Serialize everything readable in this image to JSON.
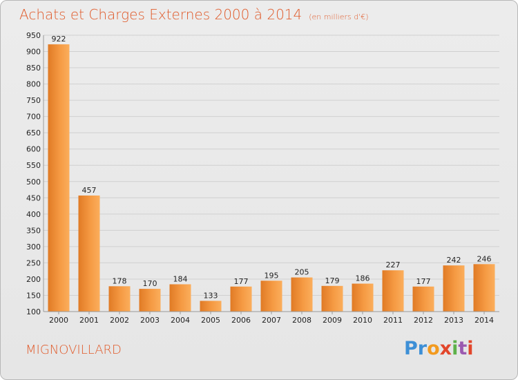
{
  "header": {
    "title": "Achats et Charges Externes 2000 à 2014",
    "unit": "(en milliers d'€)"
  },
  "footer": {
    "commune": "MIGNOVILLARD",
    "logo": "Proxiti"
  },
  "colors": {
    "accent": "#e05a2a",
    "bar_light": "#fbae5c",
    "bar_dark": "#e07a25"
  },
  "chart_data": {
    "type": "bar",
    "title": "Achats et Charges Externes 2000 à 2014",
    "subtitle": "(en milliers d'€)",
    "categories": [
      "2000",
      "2001",
      "2002",
      "2003",
      "2004",
      "2005",
      "2006",
      "2007",
      "2008",
      "2009",
      "2010",
      "2011",
      "2012",
      "2013",
      "2014"
    ],
    "values": [
      922,
      457,
      178,
      170,
      184,
      133,
      177,
      195,
      205,
      179,
      186,
      227,
      177,
      242,
      246
    ],
    "ylim": [
      100,
      950
    ],
    "yticks": [
      100,
      150,
      200,
      250,
      300,
      350,
      400,
      450,
      500,
      550,
      600,
      650,
      700,
      750,
      800,
      850,
      900,
      950
    ],
    "grid": true,
    "legend": "none"
  }
}
